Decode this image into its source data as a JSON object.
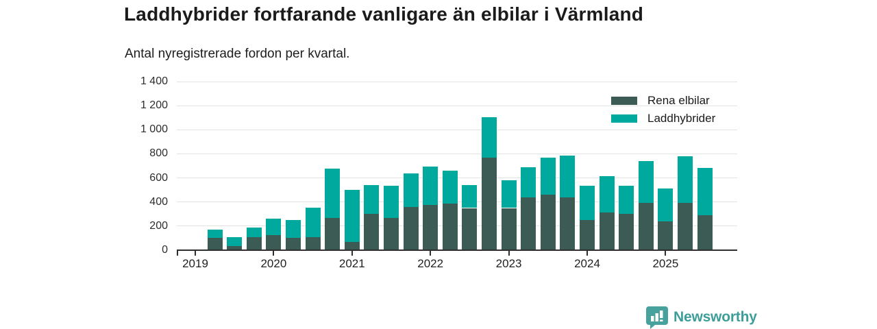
{
  "header": {
    "title": "Laddhybrider fortfarande vanligare än elbilar i Värmland",
    "subtitle": "Antal nyregistrerade fordon per kvartal."
  },
  "footer": {
    "brand": "Newsworthy",
    "brand_color": "#3d9e99",
    "icon_color": "#47a29d",
    "icon": "speech-bubble-bar-chart"
  },
  "chart_data": {
    "type": "bar",
    "stacked": true,
    "title": "Laddhybrider fortfarande vanligare än elbilar i Värmland",
    "subtitle": "Antal nyregistrerade fordon per kvartal.",
    "xlabel": "",
    "ylabel": "",
    "ylim": [
      0,
      1400
    ],
    "grid": "horizontal",
    "legend_position": "top-right",
    "categories": [
      "2019 Q2",
      "2019 Q3",
      "2019 Q4",
      "2020 Q1",
      "2020 Q2",
      "2020 Q3",
      "2020 Q4",
      "2021 Q1",
      "2021 Q2",
      "2021 Q3",
      "2021 Q4",
      "2022 Q1",
      "2022 Q2",
      "2022 Q3",
      "2022 Q4",
      "2023 Q1",
      "2023 Q2",
      "2023 Q3",
      "2023 Q4",
      "2024 Q1",
      "2024 Q2",
      "2024 Q3",
      "2024 Q4",
      "2025 Q1",
      "2025 Q2",
      "2025 Q3"
    ],
    "series": [
      {
        "name": "Rena elbilar",
        "color": "#3d5b55",
        "values": [
          105,
          35,
          110,
          125,
          100,
          110,
          265,
          70,
          300,
          270,
          360,
          375,
          385,
          350,
          770,
          350,
          440,
          460,
          440,
          250,
          315,
          300,
          395,
          240,
          390,
          290
        ]
      },
      {
        "name": "Laddhybrider",
        "color": "#00a99e",
        "values": [
          65,
          75,
          80,
          135,
          150,
          245,
          410,
          430,
          240,
          265,
          275,
          320,
          275,
          190,
          335,
          230,
          250,
          310,
          345,
          285,
          300,
          235,
          345,
          270,
          390,
          395
        ]
      }
    ],
    "yticks": [
      {
        "value": 0,
        "label": "0"
      },
      {
        "value": 200,
        "label": "200"
      },
      {
        "value": 400,
        "label": "400"
      },
      {
        "value": 600,
        "label": "600"
      },
      {
        "value": 800,
        "label": "800"
      },
      {
        "value": 1000,
        "label": "1 000"
      },
      {
        "value": 1200,
        "label": "1 200"
      },
      {
        "value": 1400,
        "label": "1 400"
      }
    ],
    "xticks": [
      "2019",
      "2020",
      "2021",
      "2022",
      "2023",
      "2024",
      "2025"
    ]
  }
}
